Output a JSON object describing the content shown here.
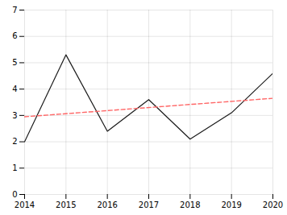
{
  "chart_data": {
    "type": "line",
    "x": [
      2014,
      2015,
      2016,
      2017,
      2018,
      2019,
      2020
    ],
    "series": [
      {
        "values": [
          2.0,
          5.3,
          2.4,
          3.6,
          2.1,
          3.1,
          4.6
        ],
        "color": "#1a1a1a",
        "line_style": "solid"
      },
      {
        "x": [
          2014,
          2020
        ],
        "values": [
          2.95,
          3.65
        ],
        "color": "#ff6666",
        "line_style": "dashed"
      }
    ],
    "xlim": [
      2014,
      2020
    ],
    "xticks": [
      2014,
      2015,
      2016,
      2017,
      2018,
      2019,
      2020
    ],
    "ylim": [
      0,
      7
    ],
    "yticks": [
      0,
      1,
      2,
      3,
      4,
      5,
      6,
      7
    ],
    "grid": true
  }
}
